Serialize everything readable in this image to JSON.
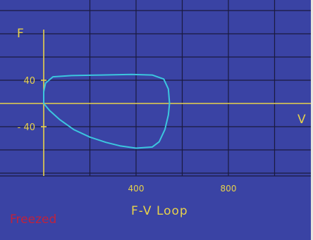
{
  "title": "F-V Loop",
  "status": "Freezed",
  "colors": {
    "background": "#3a43a4",
    "grid": "#1a1a3e",
    "axis": "#e8d24a",
    "trace": "#3cc6de",
    "status": "#c0223c"
  },
  "chart_data": {
    "type": "line",
    "title": "F-V Loop",
    "xlabel": "V",
    "ylabel": "F",
    "xlim": [
      -40,
      1130
    ],
    "ylim": [
      -110,
      140
    ],
    "grid": true,
    "x_ticks": [
      400,
      800
    ],
    "y_ticks": [
      40,
      -40
    ],
    "y_tick_labels": [
      "40",
      "- 40"
    ],
    "series": [
      {
        "points": [
          [
            0,
            0
          ],
          [
            0,
            20
          ],
          [
            8,
            35
          ],
          [
            40,
            46
          ],
          [
            120,
            48
          ],
          [
            250,
            49
          ],
          [
            380,
            50
          ],
          [
            470,
            49
          ],
          [
            520,
            42
          ],
          [
            540,
            25
          ],
          [
            545,
            0
          ],
          [
            540,
            -20
          ],
          [
            525,
            -45
          ],
          [
            500,
            -66
          ],
          [
            470,
            -75
          ],
          [
            400,
            -77
          ],
          [
            330,
            -73
          ],
          [
            270,
            -67
          ],
          [
            200,
            -58
          ],
          [
            130,
            -45
          ],
          [
            70,
            -28
          ],
          [
            25,
            -12
          ],
          [
            0,
            0
          ]
        ]
      }
    ]
  }
}
